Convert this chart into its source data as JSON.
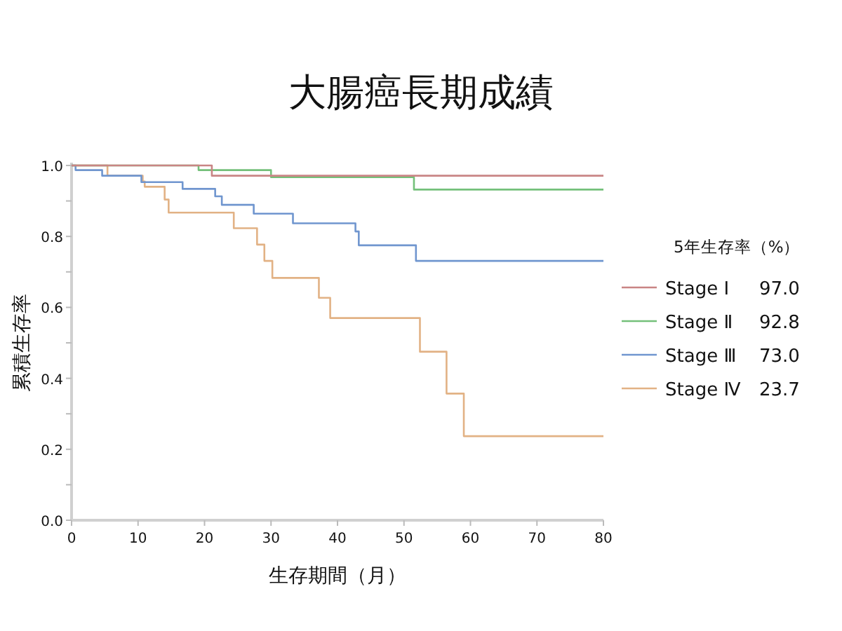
{
  "chart_data": {
    "type": "step",
    "title": "大腸癌長期成績",
    "xlabel": "生存期間（月）",
    "ylabel": "累積生存率",
    "legend_title": "5年生存率（%）",
    "xlim": [
      0,
      80
    ],
    "ylim": [
      0,
      1
    ],
    "xticks": [
      0,
      10,
      20,
      30,
      40,
      50,
      60,
      70,
      80
    ],
    "yticks": [
      {
        "value": 0,
        "label": "0.0"
      },
      {
        "value": 0.1,
        "label": null
      },
      {
        "value": 0.2,
        "label": "0.2"
      },
      {
        "value": 0.3,
        "label": null
      },
      {
        "value": 0.4,
        "label": "0.4"
      },
      {
        "value": 0.5,
        "label": null
      },
      {
        "value": 0.6,
        "label": "0.6"
      },
      {
        "value": 0.7,
        "label": null
      },
      {
        "value": 0.8,
        "label": "0.8"
      },
      {
        "value": 0.9,
        "label": null
      },
      {
        "value": 1,
        "label": "1.0"
      }
    ],
    "grid": false,
    "legend": "right",
    "marker": "none",
    "series": [
      {
        "name": "Stage Ⅰ",
        "color": "#c98585",
        "x": [
          0,
          21.1,
          80
        ],
        "values": [
          1.0,
          0.971,
          0.971
        ]
      },
      {
        "name": "Stage Ⅱ",
        "color": "#74c07a",
        "x": [
          0,
          19.1,
          30.0,
          51.5,
          80
        ],
        "values": [
          1.0,
          0.987,
          0.967,
          0.932,
          0.932
        ]
      },
      {
        "name": "Stage Ⅲ",
        "color": "#7096cf",
        "x": [
          0,
          0.6,
          4.6,
          10.5,
          16.7,
          21.6,
          22.6,
          27.4,
          33.3,
          42.7,
          43.2,
          51.8,
          80
        ],
        "values": [
          1.0,
          0.987,
          0.971,
          0.953,
          0.934,
          0.913,
          0.889,
          0.864,
          0.837,
          0.814,
          0.775,
          0.731,
          0.731
        ]
      },
      {
        "name": "Stage Ⅳ",
        "color": "#e2b285",
        "x": [
          0,
          5.4,
          10.7,
          11.0,
          14.0,
          14.6,
          24.4,
          27.9,
          29.0,
          30.2,
          37.2,
          38.9,
          52.4,
          56.4,
          59.0,
          80
        ],
        "values": [
          1.0,
          0.971,
          0.955,
          0.94,
          0.904,
          0.867,
          0.823,
          0.777,
          0.731,
          0.683,
          0.627,
          0.57,
          0.475,
          0.357,
          0.237,
          0.237
        ]
      }
    ],
    "annotations": [
      "97.0",
      "92.8",
      "73.0",
      "23.7"
    ]
  }
}
